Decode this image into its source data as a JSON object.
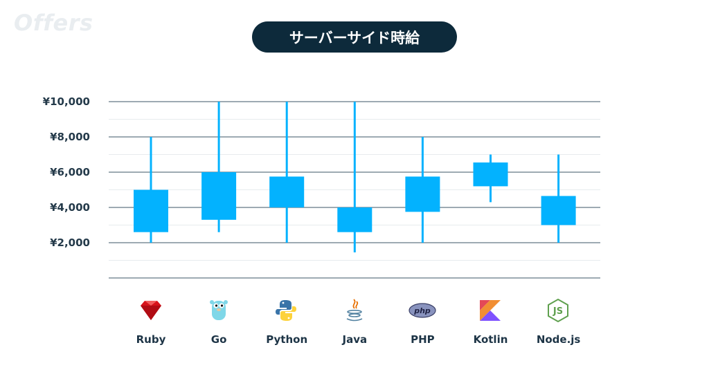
{
  "logo_text": "Offers",
  "chart_data": {
    "type": "box",
    "title": "サーバーサイド時給",
    "xlabel": "",
    "ylabel": "",
    "ylim": [
      0,
      10000
    ],
    "yticks": [
      2000,
      4000,
      6000,
      8000,
      10000
    ],
    "ytick_labels": [
      "¥2,000",
      "¥4,000",
      "¥6,000",
      "¥8,000",
      "¥10,000"
    ],
    "grid": true,
    "categories": [
      "Ruby",
      "Go",
      "Python",
      "Java",
      "PHP",
      "Kotlin",
      "Node.js"
    ],
    "series": [
      {
        "values": [
          {
            "min": 2000,
            "q1": 2600,
            "q3": 5000,
            "max": 8000
          },
          {
            "min": 2600,
            "q1": 3300,
            "q3": 6000,
            "max": 10000
          },
          {
            "min": 2000,
            "q1": 4000,
            "q3": 5750,
            "max": 10000
          },
          {
            "min": 1450,
            "q1": 2600,
            "q3": 4000,
            "max": 10000
          },
          {
            "min": 2000,
            "q1": 3750,
            "q3": 5750,
            "max": 8000
          },
          {
            "min": 4300,
            "q1": 5200,
            "q3": 6550,
            "max": 7000
          },
          {
            "min": 2000,
            "q1": 3000,
            "q3": 4650,
            "max": 7000
          }
        ]
      }
    ],
    "icons": [
      "ruby-icon",
      "go-gopher-icon",
      "python-icon",
      "java-icon",
      "php-icon",
      "kotlin-icon",
      "nodejs-icon"
    ],
    "colors": {
      "box": "#03b2fe",
      "grid_major": "#3b5565",
      "grid_minor": "#e7ebee",
      "title_bg": "#0d2a3b"
    }
  }
}
